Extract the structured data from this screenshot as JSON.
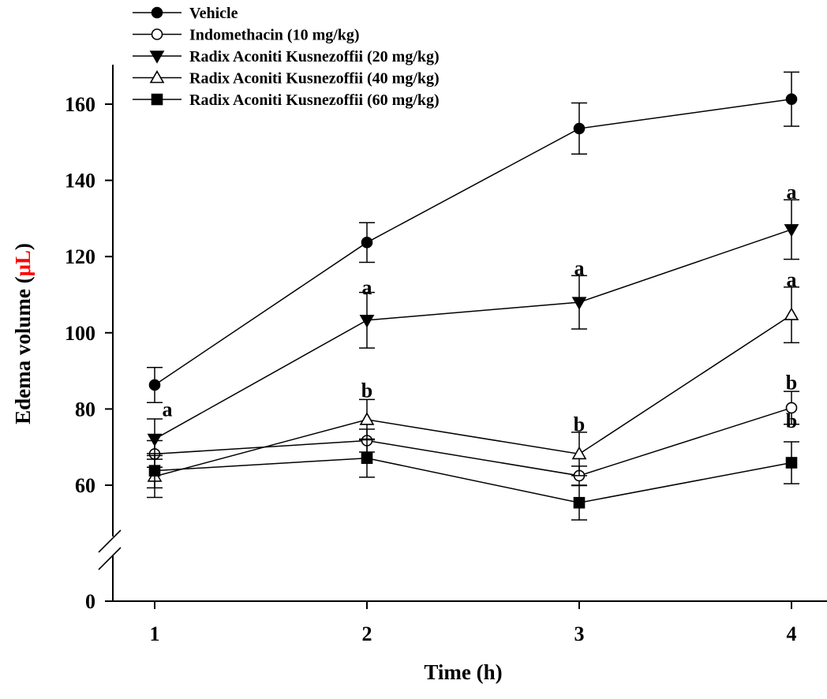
{
  "chart_data": {
    "type": "line",
    "title": "",
    "xlabel": "Time (h)",
    "ylabel_prefix": "Edema volume (",
    "ylabel_unit": "μL",
    "ylabel_suffix": ")",
    "unit_color": "#ff0000",
    "x": [
      1,
      2,
      3,
      4
    ],
    "xticks": [
      "1",
      "2",
      "3",
      "4"
    ],
    "yticks": [
      0,
      60,
      80,
      100,
      120,
      140,
      160
    ],
    "ylim": [
      0,
      170
    ],
    "y_axis_break": [
      0,
      60
    ],
    "legend_position": "top-left",
    "series": [
      {
        "name": "Vehicle",
        "marker": "circle-filled",
        "values": [
          86.3,
          123.7,
          153.6,
          161.3
        ],
        "errors": [
          4.6,
          5.2,
          6.7,
          7.1
        ]
      },
      {
        "name": "Indomethacin (10 mg/kg)",
        "marker": "circle-open",
        "values": [
          68.2,
          71.7,
          62.5,
          80.3
        ],
        "errors": [
          3.5,
          3.0,
          2.5,
          4.3
        ]
      },
      {
        "name": "Radix Aconiti Kusnezoffii  (20 mg/kg)",
        "marker": "triangle-down-filled",
        "values": [
          72.1,
          103.3,
          108.0,
          127.1
        ],
        "errors": [
          5.3,
          7.3,
          7.0,
          7.8
        ]
      },
      {
        "name": "Radix Aconiti Kusnezoffii  (40 mg/kg)",
        "marker": "triangle-up-open",
        "values": [
          62.3,
          77.2,
          68.2,
          104.7
        ],
        "errors": [
          5.5,
          5.3,
          5.7,
          7.3
        ]
      },
      {
        "name": "Radix Aconiti Kusnezoffii  (60 mg/kg)",
        "marker": "square-filled",
        "values": [
          63.8,
          67.1,
          55.4,
          65.9
        ],
        "errors": [
          4.5,
          5.0,
          4.5,
          5.5
        ]
      }
    ],
    "annotations": [
      {
        "text": "a",
        "x": 1,
        "y": 80
      },
      {
        "text": "a",
        "x": 2,
        "y": 112
      },
      {
        "text": "b",
        "x": 2,
        "y": 85
      },
      {
        "text": "a",
        "x": 3,
        "y": 117
      },
      {
        "text": "b",
        "x": 3,
        "y": 76
      },
      {
        "text": "a",
        "x": 4,
        "y": 137
      },
      {
        "text": "a",
        "x": 4,
        "y": 114
      },
      {
        "text": "b",
        "x": 4,
        "y": 87
      },
      {
        "text": "b",
        "x": 4,
        "y": 77
      }
    ]
  }
}
